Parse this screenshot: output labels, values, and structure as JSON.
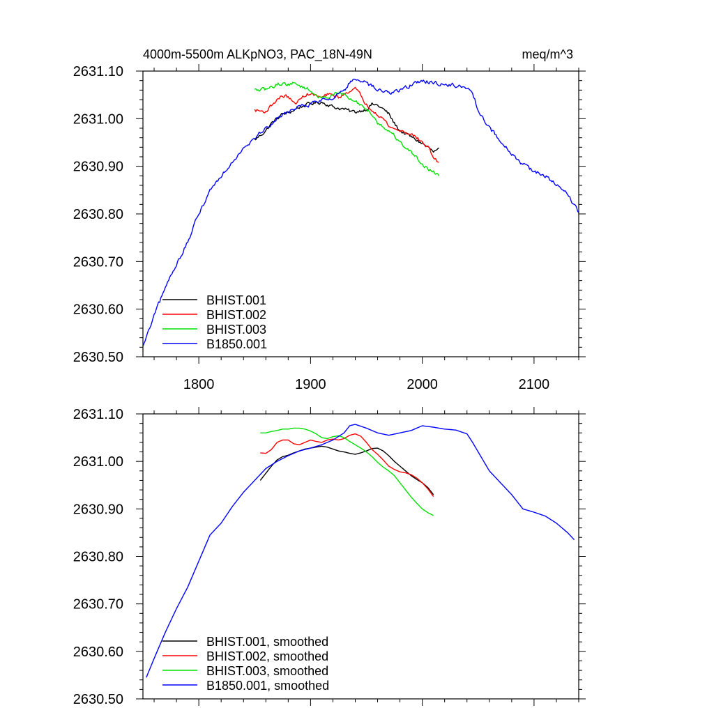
{
  "figure": {
    "title_left": "4000m-5500m ALKpNO3, PAC_18N-49N",
    "title_right": "meq/m^3"
  },
  "chart_data": [
    {
      "type": "line",
      "title": "",
      "xlabel": "",
      "ylabel": "",
      "xlim": [
        1750,
        2140
      ],
      "ylim": [
        2630.5,
        2631.1
      ],
      "x_ticks": [
        1800,
        1900,
        2000,
        2100
      ],
      "x_tick_labels": [
        "1800",
        "1900",
        "2000",
        "2100"
      ],
      "y_ticks": [
        2630.5,
        2630.6,
        2630.7,
        2630.8,
        2630.9,
        2631.0,
        2631.1
      ],
      "y_tick_labels": [
        "2630.50",
        "2630.60",
        "2630.70",
        "2630.80",
        "2630.90",
        "2631.00",
        "2631.10"
      ],
      "show_x_tick_labels": true,
      "grid": false,
      "legend": "bottom-left",
      "series": [
        {
          "name": "BHIST.001",
          "color": "#000000",
          "noise": 0.006,
          "x": [
            1850,
            1855,
            1860,
            1865,
            1870,
            1875,
            1880,
            1885,
            1890,
            1895,
            1900,
            1905,
            1910,
            1915,
            1920,
            1925,
            1930,
            1935,
            1940,
            1945,
            1950,
            1955,
            1960,
            1965,
            1970,
            1975,
            1980,
            1985,
            1990,
            1995,
            2000,
            2005,
            2010,
            2015
          ],
          "y": [
            2630.955,
            2630.965,
            2630.975,
            2630.99,
            2631.0,
            2631.01,
            2631.012,
            2631.018,
            2631.024,
            2631.028,
            2631.032,
            2631.033,
            2631.035,
            2631.03,
            2631.025,
            2631.022,
            2631.02,
            2631.016,
            2631.014,
            2631.017,
            2631.02,
            2631.03,
            2631.028,
            2631.02,
            2631.01,
            2630.99,
            2630.975,
            2630.968,
            2630.962,
            2630.955,
            2630.948,
            2630.94,
            2630.93,
            2630.935
          ]
        },
        {
          "name": "BHIST.002",
          "color": "#ff0000",
          "noise": 0.006,
          "x": [
            1850,
            1855,
            1860,
            1865,
            1870,
            1875,
            1880,
            1885,
            1890,
            1895,
            1900,
            1905,
            1910,
            1915,
            1920,
            1925,
            1930,
            1935,
            1940,
            1945,
            1950,
            1955,
            1960,
            1965,
            1970,
            1975,
            1980,
            1985,
            1990,
            1995,
            2000,
            2005,
            2010,
            2015
          ],
          "y": [
            2631.018,
            2631.016,
            2631.015,
            2631.028,
            2631.04,
            2631.048,
            2631.046,
            2631.032,
            2631.038,
            2631.05,
            2631.052,
            2631.048,
            2631.044,
            2631.05,
            2631.049,
            2631.045,
            2631.05,
            2631.06,
            2631.063,
            2631.048,
            2631.03,
            2631.02,
            2631.01,
            2631.0,
            2630.985,
            2630.978,
            2630.975,
            2630.972,
            2630.968,
            2630.96,
            2630.95,
            2630.94,
            2630.92,
            2630.905
          ]
        },
        {
          "name": "BHIST.003",
          "color": "#00e000",
          "noise": 0.006,
          "x": [
            1850,
            1855,
            1860,
            1865,
            1870,
            1875,
            1880,
            1885,
            1890,
            1895,
            1900,
            1905,
            1910,
            1915,
            1920,
            1925,
            1930,
            1935,
            1940,
            1945,
            1950,
            1955,
            1960,
            1965,
            1970,
            1975,
            1980,
            1985,
            1990,
            1995,
            2000,
            2005,
            2010,
            2015
          ],
          "y": [
            2631.06,
            2631.06,
            2631.062,
            2631.066,
            2631.072,
            2631.074,
            2631.072,
            2631.074,
            2631.07,
            2631.065,
            2631.058,
            2631.05,
            2631.042,
            2631.045,
            2631.052,
            2631.054,
            2631.05,
            2631.042,
            2631.035,
            2631.03,
            2631.02,
            2631.01,
            2630.992,
            2630.982,
            2630.975,
            2630.965,
            2630.95,
            2630.94,
            2630.93,
            2630.918,
            2630.905,
            2630.895,
            2630.888,
            2630.882
          ]
        },
        {
          "name": "B1850.001",
          "color": "#0000ff",
          "noise": 0.007,
          "x": [
            1750,
            1760,
            1770,
            1780,
            1790,
            1800,
            1810,
            1820,
            1830,
            1840,
            1850,
            1860,
            1870,
            1880,
            1890,
            1900,
            1910,
            1920,
            1930,
            1935,
            1940,
            1950,
            1960,
            1970,
            1980,
            1990,
            2000,
            2010,
            2020,
            2030,
            2040,
            2045,
            2050,
            2060,
            2070,
            2080,
            2090,
            2100,
            2110,
            2120,
            2130,
            2140
          ],
          "y": [
            2630.52,
            2630.585,
            2630.645,
            2630.695,
            2630.74,
            2630.8,
            2630.85,
            2630.88,
            2630.91,
            2630.94,
            2630.96,
            2630.98,
            2631.0,
            2631.015,
            2631.025,
            2631.03,
            2631.04,
            2631.045,
            2631.06,
            2631.075,
            2631.08,
            2631.075,
            2631.06,
            2631.055,
            2631.06,
            2631.07,
            2631.08,
            2631.075,
            2631.072,
            2631.07,
            2631.065,
            2631.05,
            2631.02,
            2630.98,
            2630.955,
            2630.925,
            2630.905,
            2630.89,
            2630.88,
            2630.86,
            2630.84,
            2630.805
          ]
        }
      ]
    },
    {
      "type": "line",
      "title": "",
      "xlabel": "",
      "ylabel": "",
      "xlim": [
        1750,
        2140
      ],
      "ylim": [
        2630.5,
        2631.1
      ],
      "x_ticks": [
        1800,
        1900,
        2000,
        2100
      ],
      "y_ticks": [
        2630.5,
        2630.6,
        2630.7,
        2630.8,
        2630.9,
        2631.0,
        2631.1
      ],
      "y_tick_labels": [
        "2630.50",
        "2630.60",
        "2630.70",
        "2630.80",
        "2630.90",
        "2631.00",
        "2631.10"
      ],
      "show_x_tick_labels": false,
      "grid": false,
      "legend": "bottom-left",
      "series": [
        {
          "name": "BHIST.001, smoothed",
          "color": "#000000",
          "noise": 0,
          "x": [
            1855,
            1860,
            1865,
            1870,
            1875,
            1880,
            1885,
            1890,
            1895,
            1900,
            1905,
            1910,
            1915,
            1920,
            1925,
            1930,
            1935,
            1940,
            1945,
            1950,
            1955,
            1960,
            1965,
            1970,
            1975,
            1980,
            1985,
            1990,
            1995,
            2000,
            2005,
            2010
          ],
          "y": [
            2630.96,
            2630.975,
            2630.99,
            2631.003,
            2631.01,
            2631.013,
            2631.018,
            2631.022,
            2631.026,
            2631.028,
            2631.03,
            2631.032,
            2631.03,
            2631.026,
            2631.022,
            2631.02,
            2631.017,
            2631.015,
            2631.018,
            2631.022,
            2631.027,
            2631.028,
            2631.022,
            2631.012,
            2631.0,
            2630.99,
            2630.98,
            2630.97,
            2630.962,
            2630.955,
            2630.945,
            2630.93
          ]
        },
        {
          "name": "BHIST.002, smoothed",
          "color": "#ff0000",
          "noise": 0,
          "x": [
            1855,
            1860,
            1865,
            1870,
            1875,
            1880,
            1885,
            1890,
            1895,
            1900,
            1905,
            1910,
            1915,
            1920,
            1925,
            1930,
            1935,
            1940,
            1945,
            1950,
            1955,
            1960,
            1965,
            1970,
            1975,
            1980,
            1985,
            1990,
            1995,
            2000,
            2005,
            2010
          ],
          "y": [
            2631.018,
            2631.017,
            2631.025,
            2631.04,
            2631.045,
            2631.045,
            2631.037,
            2631.035,
            2631.04,
            2631.045,
            2631.042,
            2631.04,
            2631.045,
            2631.047,
            2631.045,
            2631.048,
            2631.055,
            2631.058,
            2631.053,
            2631.04,
            2631.025,
            2631.015,
            2631.003,
            2630.99,
            2630.983,
            2630.978,
            2630.976,
            2630.972,
            2630.965,
            2630.955,
            2630.942,
            2630.926
          ]
        },
        {
          "name": "BHIST.003, smoothed",
          "color": "#00e000",
          "noise": 0,
          "x": [
            1855,
            1860,
            1865,
            1870,
            1875,
            1880,
            1885,
            1890,
            1895,
            1900,
            1905,
            1910,
            1915,
            1920,
            1925,
            1930,
            1935,
            1940,
            1945,
            1950,
            1955,
            1960,
            1965,
            1970,
            1975,
            1980,
            1985,
            1990,
            1995,
            2000,
            2005,
            2010
          ],
          "y": [
            2631.06,
            2631.06,
            2631.063,
            2631.065,
            2631.068,
            2631.068,
            2631.07,
            2631.07,
            2631.068,
            2631.064,
            2631.058,
            2631.05,
            2631.048,
            2631.052,
            2631.054,
            2631.05,
            2631.042,
            2631.035,
            2631.028,
            2631.02,
            2631.01,
            2630.998,
            2630.988,
            2630.98,
            2630.97,
            2630.955,
            2630.94,
            2630.925,
            2630.912,
            2630.9,
            2630.892,
            2630.886
          ]
        },
        {
          "name": "B1850.001, smoothed",
          "color": "#0000ff",
          "noise": 0,
          "x": [
            1753,
            1760,
            1770,
            1780,
            1790,
            1800,
            1810,
            1820,
            1830,
            1840,
            1850,
            1860,
            1870,
            1880,
            1890,
            1900,
            1910,
            1920,
            1930,
            1935,
            1940,
            1950,
            1960,
            1970,
            1980,
            1990,
            2000,
            2010,
            2020,
            2030,
            2040,
            2045,
            2050,
            2060,
            2070,
            2080,
            2090,
            2100,
            2110,
            2120,
            2130,
            2136
          ],
          "y": [
            2630.545,
            2630.585,
            2630.64,
            2630.69,
            2630.735,
            2630.79,
            2630.845,
            2630.87,
            2630.905,
            2630.935,
            2630.96,
            2630.985,
            2631.0,
            2631.012,
            2631.022,
            2631.028,
            2631.035,
            2631.045,
            2631.06,
            2631.075,
            2631.078,
            2631.07,
            2631.06,
            2631.055,
            2631.06,
            2631.065,
            2631.075,
            2631.072,
            2631.068,
            2631.066,
            2631.058,
            2631.04,
            2631.02,
            2630.98,
            2630.955,
            2630.93,
            2630.9,
            2630.893,
            2630.885,
            2630.87,
            2630.85,
            2630.835
          ]
        }
      ]
    }
  ]
}
